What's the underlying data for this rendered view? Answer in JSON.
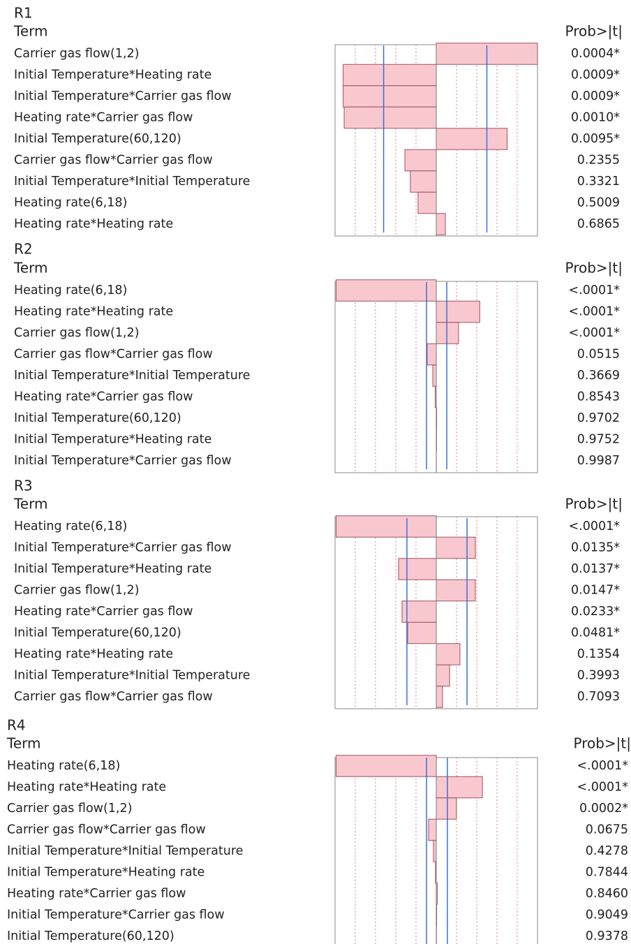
{
  "chart_data": [
    {
      "type": "bar",
      "title": "R1",
      "term_header": "Term",
      "prob_header": "Prob>|t|",
      "categories": [
        "Carrier gas flow(1,2)",
        "Initial Temperature*Heating rate",
        "Initial Temperature*Carrier gas flow",
        "Heating rate*Carrier gas flow",
        "Initial Temperature(60,120)",
        "Carrier gas flow*Carrier gas flow",
        "Initial Temperature*Initial Temperature",
        "Heating rate(6,18)",
        "Heating rate*Heating rate"
      ],
      "values": [
        5.0,
        -4.6,
        -4.6,
        -4.55,
        3.5,
        -1.55,
        -1.28,
        -0.9,
        0.45
      ],
      "probs": [
        "0.0004*",
        "0.0009*",
        "0.0009*",
        "0.0010*",
        "0.0095*",
        "0.2355",
        "0.3321",
        "0.5009",
        "0.6865"
      ],
      "ref_lines": [
        -2.6,
        2.5
      ],
      "xlim": [
        -5,
        5
      ],
      "gridlines": [
        -4,
        -3,
        -2,
        -1,
        1,
        2,
        3,
        4
      ],
      "color": "#f9c8ce"
    },
    {
      "type": "bar",
      "title": "R2",
      "term_header": "Term",
      "prob_header": "Prob>|t|",
      "categories": [
        "Heating rate(6,18)",
        "Heating rate*Heating rate",
        "Carrier gas flow(1,2)",
        "Carrier gas flow*Carrier gas flow",
        "Initial Temperature*Initial Temperature",
        "Heating rate*Carrier gas flow",
        "Initial Temperature(60,120)",
        "Initial Temperature*Heating rate",
        "Initial Temperature*Carrier gas flow"
      ],
      "values": [
        -4.95,
        2.15,
        1.1,
        -0.45,
        -0.17,
        -0.05,
        0.02,
        0.015,
        0.005
      ],
      "probs": [
        "<.0001*",
        "<.0001*",
        "<.0001*",
        "0.0515",
        "0.3669",
        "0.8543",
        "0.9702",
        "0.9752",
        "0.9987"
      ],
      "ref_lines": [
        -0.48,
        0.52
      ],
      "xlim": [
        -5,
        5
      ],
      "gridlines": [
        -4,
        -3,
        -2,
        -1,
        1,
        2,
        3,
        4
      ],
      "color": "#f9c8ce"
    },
    {
      "type": "bar",
      "title": "R3",
      "term_header": "Term",
      "prob_header": "Prob>|t|",
      "categories": [
        "Heating rate(6,18)",
        "Initial Temperature*Carrier gas flow",
        "Initial Temperature*Heating rate",
        "Carrier gas flow(1,2)",
        "Heating rate*Carrier gas flow",
        "Initial Temperature(60,120)",
        "Heating rate*Heating rate",
        "Initial Temperature*Initial Temperature",
        "Carrier gas flow*Carrier gas flow"
      ],
      "values": [
        -4.95,
        1.93,
        -1.86,
        1.93,
        -1.69,
        -1.41,
        1.17,
        0.66,
        0.31
      ],
      "probs": [
        "<.0001*",
        "0.0135*",
        "0.0137*",
        "0.0147*",
        "0.0233*",
        "0.0481*",
        "0.1354",
        "0.3993",
        "0.7093"
      ],
      "ref_lines": [
        -1.45,
        1.52
      ],
      "xlim": [
        -5,
        5
      ],
      "gridlines": [
        -4,
        -3,
        -2,
        -1,
        1,
        2,
        3,
        4
      ],
      "color": "#f9c8ce"
    },
    {
      "type": "bar",
      "title": "R4",
      "term_header": "Term",
      "prob_header": "Prob>|t|",
      "categories": [
        "Heating rate(6,18)",
        "Heating rate*Heating rate",
        "Carrier gas flow(1,2)",
        "Carrier gas flow*Carrier gas flow",
        "Initial Temperature*Initial Temperature",
        "Initial Temperature*Heating rate",
        "Heating rate*Carrier gas flow",
        "Initial Temperature*Carrier gas flow",
        "Initial Temperature(60,120)"
      ],
      "values": [
        -4.95,
        2.28,
        1.0,
        -0.38,
        -0.14,
        -0.04,
        0.05,
        0.02,
        0.01
      ],
      "probs": [
        "<.0001*",
        "<.0001*",
        "0.0002*",
        "0.0675",
        "0.4278",
        "0.7844",
        "0.8460",
        "0.9049",
        "0.9378"
      ],
      "ref_lines": [
        -0.48,
        0.55
      ],
      "xlim": [
        -5,
        5
      ],
      "gridlines": [
        -4,
        -3,
        -2,
        -1,
        1,
        2,
        3,
        4
      ],
      "color": "#f9c8ce"
    }
  ]
}
